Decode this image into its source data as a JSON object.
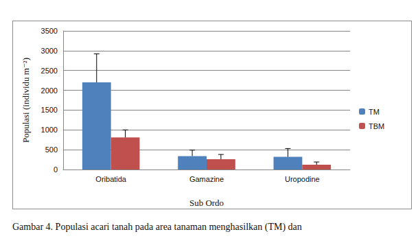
{
  "chart_data": {
    "type": "bar",
    "caption": "Gambar 4. Populasi acari tanah pada area tanaman menghasilkan (TM) dan",
    "x_label": "Sub Ordo",
    "y_label": "Populasi (individu m⁻²)",
    "categories": [
      "Oribatida",
      "Gamazine",
      "Uropodine"
    ],
    "series": [
      {
        "name": "TM",
        "color": "#4f81bd",
        "values": [
          2200,
          340,
          320
        ],
        "errors": [
          720,
          150,
          210
        ]
      },
      {
        "name": "TBM",
        "color": "#c0504d",
        "values": [
          810,
          260,
          120
        ],
        "errors": [
          190,
          120,
          70
        ]
      }
    ],
    "ylim": [
      0,
      3500
    ],
    "yticks": [
      0,
      500,
      1000,
      1500,
      2000,
      2500,
      3000,
      3500
    ],
    "grid": true,
    "legend": "right"
  }
}
